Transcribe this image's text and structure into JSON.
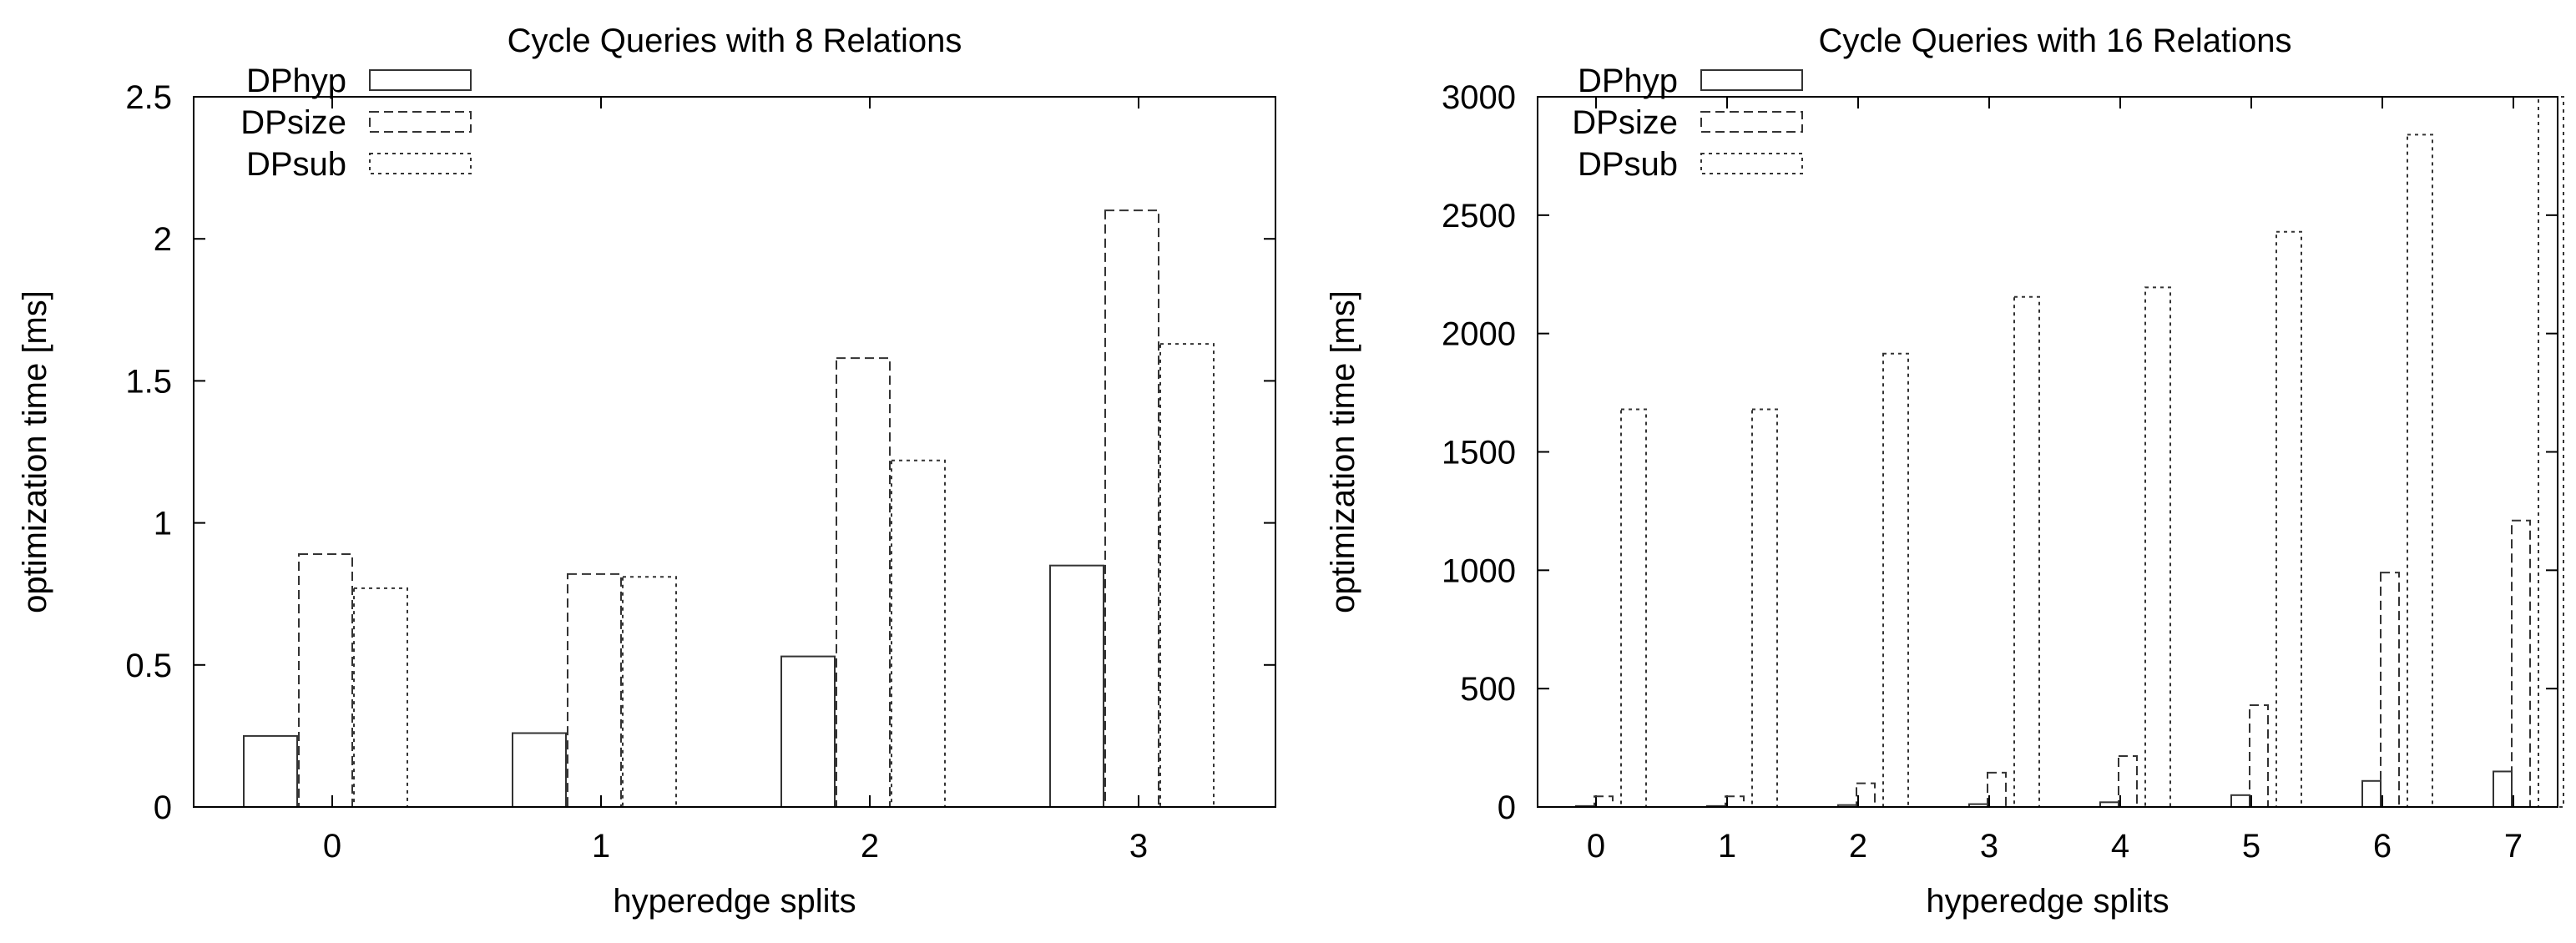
{
  "chart_data": [
    {
      "type": "bar",
      "title": "Cycle Queries with 8 Relations",
      "xlabel": "hyperedge splits",
      "ylabel": "optimization time [ms]",
      "categories": [
        "0",
        "1",
        "2",
        "3"
      ],
      "ylim": [
        0,
        2.5
      ],
      "yticks": [
        "0",
        "0.5",
        "1",
        "1.5",
        "2",
        "2.5"
      ],
      "grid": false,
      "legend": "top-left",
      "series": [
        {
          "name": "DPhyp",
          "values": [
            0.25,
            0.26,
            0.53,
            0.85
          ],
          "style": "solid"
        },
        {
          "name": "DPsize",
          "values": [
            0.89,
            0.82,
            1.58,
            2.1
          ],
          "style": "dashed"
        },
        {
          "name": "DPsub",
          "values": [
            0.77,
            0.81,
            1.22,
            1.63
          ],
          "style": "dotted"
        }
      ]
    },
    {
      "type": "bar",
      "title": "Cycle Queries with 16 Relations",
      "xlabel": "hyperedge splits",
      "ylabel": "optimization time [ms]",
      "categories": [
        "0",
        "1",
        "2",
        "3",
        "4",
        "5",
        "6",
        "7"
      ],
      "ylim": [
        0,
        3000
      ],
      "yticks": [
        "0",
        "500",
        "1000",
        "1500",
        "2000",
        "2500",
        "3000"
      ],
      "grid": false,
      "legend": "top-left",
      "series": [
        {
          "name": "DPhyp",
          "values": [
            4,
            4,
            8,
            12,
            20,
            50,
            110,
            150
          ],
          "style": "solid"
        },
        {
          "name": "DPsize",
          "values": [
            45,
            45,
            100,
            145,
            215,
            430,
            990,
            1210
          ],
          "style": "dashed"
        },
        {
          "name": "DPsub",
          "values": [
            1680,
            1680,
            1915,
            2155,
            2195,
            2430,
            2840,
            3000
          ],
          "style": "dotted"
        }
      ]
    }
  ],
  "colors": {
    "axis": "#000000",
    "bar_stroke": "#333333",
    "background": "#ffffff"
  }
}
